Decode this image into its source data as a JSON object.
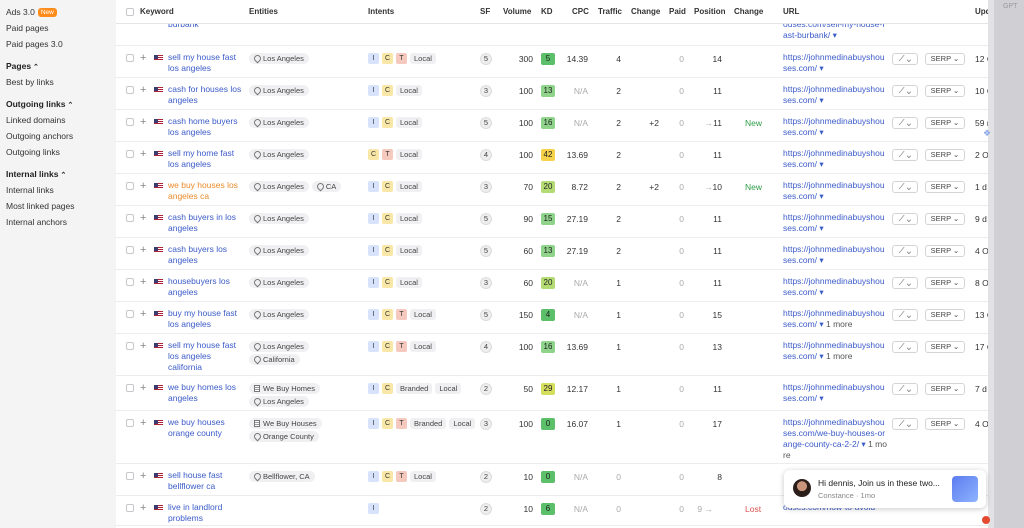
{
  "sidebar": {
    "top_items": [
      {
        "label": "Ads 3.0",
        "badge": "New"
      },
      {
        "label": "Paid pages"
      },
      {
        "label": "Paid pages 3.0"
      }
    ],
    "sections": [
      {
        "title": "Pages",
        "items": [
          "Best by links"
        ]
      },
      {
        "title": "Outgoing links",
        "items": [
          "Linked domains",
          "Outgoing anchors",
          "Outgoing links"
        ]
      },
      {
        "title": "Internal links",
        "items": [
          "Internal links",
          "Most linked pages",
          "Internal anchors"
        ]
      }
    ]
  },
  "table": {
    "headers": {
      "keyword": "Keyword",
      "entities": "Entities",
      "intents": "Intents",
      "sf": "SF",
      "volume": "Volume",
      "kd": "KD",
      "cpc": "CPC",
      "traffic": "Traffic",
      "change": "Change",
      "paid": "Paid",
      "position": "Position",
      "change2": "Change",
      "url": "URL",
      "updated": "Upd"
    },
    "trend_button": "⟋ ⌄",
    "serp_button": "SERP ⌄",
    "partial_top": {
      "keyword": "burbank",
      "url": "ouses.com/sell-my-house-fast-burbank/ ▾"
    },
    "rows": [
      {
        "keyword": "sell my house fast los angeles",
        "entities": [
          "Los Angeles"
        ],
        "intents": [
          "I",
          "C",
          "T"
        ],
        "intent_tags": [
          "Local"
        ],
        "sf": "5",
        "volume": "300",
        "kd": "5",
        "kd_color": "#5cbf6a",
        "cpc": "14.39",
        "traffic": "4",
        "change": "",
        "paid": "0",
        "position": "14",
        "pos_prev": "",
        "change2": "",
        "url": "https://johnmedinabuyshouses.com/ ▾",
        "more": "",
        "updated": "12 C"
      },
      {
        "keyword": "cash for houses los angeles",
        "entities": [
          "Los Angeles"
        ],
        "intents": [
          "I",
          "C"
        ],
        "intent_tags": [
          "Local"
        ],
        "sf": "3",
        "volume": "100",
        "kd": "13",
        "kd_color": "#8fd48a",
        "cpc": "N/A",
        "traffic": "2",
        "change": "",
        "paid": "0",
        "position": "11",
        "pos_prev": "",
        "change2": "",
        "url": "https://johnmedinabuyshouses.com/ ▾",
        "more": "",
        "updated": "10 C"
      },
      {
        "keyword": "cash home buyers los angeles",
        "entities": [
          "Los Angeles"
        ],
        "intents": [
          "I",
          "C"
        ],
        "intent_tags": [
          "Local"
        ],
        "sf": "5",
        "volume": "100",
        "kd": "16",
        "kd_color": "#8fd48a",
        "cpc": "N/A",
        "traffic": "2",
        "change": "+2",
        "paid": "0",
        "position": "11",
        "pos_prev": "→",
        "change2": "New",
        "url": "https://johnmedinabuyshouses.com/ ▾",
        "more": "",
        "updated": "59 r"
      },
      {
        "keyword": "sell my home fast los angeles",
        "entities": [
          "Los Angeles"
        ],
        "intents": [
          "C",
          "T"
        ],
        "intent_tags": [
          "Local"
        ],
        "sf": "4",
        "volume": "100",
        "kd": "42",
        "kd_color": "#f5d24a",
        "cpc": "13.69",
        "traffic": "2",
        "change": "",
        "paid": "0",
        "position": "11",
        "pos_prev": "",
        "change2": "",
        "url": "https://johnmedinabuyshouses.com/ ▾",
        "more": "",
        "updated": "2 Oc"
      },
      {
        "keyword": "we buy houses los angeles ca",
        "orange": true,
        "entities": [
          "Los Angeles",
          "CA"
        ],
        "intents": [
          "I",
          "C"
        ],
        "intent_tags": [
          "Local"
        ],
        "sf": "3",
        "volume": "70",
        "kd": "20",
        "kd_color": "#b5dc74",
        "cpc": "8.72",
        "traffic": "2",
        "change": "+2",
        "paid": "0",
        "position": "10",
        "pos_prev": "→",
        "change2": "New",
        "url": "https://johnmedinabuyshouses.com/ ▾",
        "more": "",
        "updated": "1 d a"
      },
      {
        "keyword": "cash buyers in los angeles",
        "entities": [
          "Los Angeles"
        ],
        "intents": [
          "I",
          "C"
        ],
        "intent_tags": [
          "Local"
        ],
        "sf": "5",
        "volume": "90",
        "kd": "15",
        "kd_color": "#8fd48a",
        "cpc": "27.19",
        "traffic": "2",
        "change": "",
        "paid": "0",
        "position": "11",
        "pos_prev": "",
        "change2": "",
        "url": "https://johnmedinabuyshouses.com/ ▾",
        "more": "",
        "updated": "9 d"
      },
      {
        "keyword": "cash buyers los angeles",
        "entities": [
          "Los Angeles"
        ],
        "intents": [
          "I",
          "C"
        ],
        "intent_tags": [
          "Local"
        ],
        "sf": "5",
        "volume": "60",
        "kd": "13",
        "kd_color": "#8fd48a",
        "cpc": "27.19",
        "traffic": "2",
        "change": "",
        "paid": "0",
        "position": "11",
        "pos_prev": "",
        "change2": "",
        "url": "https://johnmedinabuyshouses.com/ ▾",
        "more": "",
        "updated": "4 Oc"
      },
      {
        "keyword": "housebuyers los angeles",
        "entities": [
          "Los Angeles"
        ],
        "intents": [
          "I",
          "C"
        ],
        "intent_tags": [
          "Local"
        ],
        "sf": "3",
        "volume": "60",
        "kd": "20",
        "kd_color": "#b5dc74",
        "cpc": "N/A",
        "traffic": "1",
        "change": "",
        "paid": "0",
        "position": "11",
        "pos_prev": "",
        "change2": "",
        "url": "https://johnmedinabuyshouses.com/ ▾",
        "more": "",
        "updated": "8 Oc"
      },
      {
        "keyword": "buy my house fast los angeles",
        "entities": [
          "Los Angeles"
        ],
        "intents": [
          "I",
          "C",
          "T"
        ],
        "intent_tags": [
          "Local"
        ],
        "sf": "5",
        "volume": "150",
        "kd": "4",
        "kd_color": "#5cbf6a",
        "cpc": "N/A",
        "traffic": "1",
        "change": "",
        "paid": "0",
        "position": "15",
        "pos_prev": "",
        "change2": "",
        "url": "https://johnmedinabuyshouses.com/ ▾",
        "more": "1 more",
        "updated": "13 C"
      },
      {
        "keyword": "sell my house fast los angeles california",
        "entities": [
          "Los Angeles",
          "California"
        ],
        "intents": [
          "I",
          "C",
          "T"
        ],
        "intent_tags": [
          "Local"
        ],
        "sf": "4",
        "volume": "100",
        "kd": "16",
        "kd_color": "#8fd48a",
        "cpc": "13.69",
        "traffic": "1",
        "change": "",
        "paid": "0",
        "position": "13",
        "pos_prev": "",
        "change2": "",
        "url": "https://johnmedinabuyshouses.com/ ▾",
        "more": "1 more",
        "updated": "17 C"
      },
      {
        "keyword": "we buy homes los angeles",
        "entities": [
          "We Buy Homes",
          "Los Angeles"
        ],
        "entity_building": [
          true,
          false
        ],
        "intents": [
          "I",
          "C"
        ],
        "intent_tags": [
          "Branded",
          "Local"
        ],
        "sf": "2",
        "volume": "50",
        "kd": "29",
        "kd_color": "#d6de5e",
        "cpc": "12.17",
        "traffic": "1",
        "change": "",
        "paid": "0",
        "position": "11",
        "pos_prev": "",
        "change2": "",
        "url": "https://johnmedinabuyshouses.com/ ▾",
        "more": "",
        "updated": "7 d a"
      },
      {
        "keyword": "we buy houses orange county",
        "entities": [
          "We Buy Houses",
          "Orange County"
        ],
        "entity_building": [
          true,
          false
        ],
        "intents": [
          "I",
          "C",
          "T"
        ],
        "intent_tags": [
          "Branded",
          "Local"
        ],
        "sf": "3",
        "volume": "100",
        "kd": "0",
        "kd_color": "#5cbf6a",
        "cpc": "16.07",
        "traffic": "1",
        "change": "",
        "paid": "0",
        "position": "17",
        "pos_prev": "",
        "change2": "",
        "url": "https://johnmedinabuyshouses.com/we-buy-houses-orange-county-ca-2-2/ ▾",
        "more": "1 more",
        "updated": "4 Oc"
      },
      {
        "keyword": "sell house fast bellflower ca",
        "entities": [
          "Bellflower, CA"
        ],
        "intents": [
          "I",
          "C",
          "T"
        ],
        "intent_tags": [
          "Local"
        ],
        "sf": "2",
        "volume": "10",
        "kd": "0",
        "kd_color": "#5cbf6a",
        "cpc": "N/A",
        "traffic": "0",
        "change": "",
        "paid": "0",
        "position": "8",
        "pos_prev": "",
        "change2": "",
        "url": "",
        "more": "",
        "updated": ""
      },
      {
        "keyword": "live in landlord problems",
        "entities": [],
        "intents": [
          "I"
        ],
        "intent_tags": [],
        "sf": "2",
        "volume": "10",
        "kd": "6",
        "kd_color": "#5cbf6a",
        "cpc": "N/A",
        "traffic": "0",
        "change": "",
        "paid": "0",
        "position": "",
        "pos_prev": "9 →",
        "change2": "Lost",
        "url": "ouses.com/how-to-avoid",
        "more": "",
        "updated": ""
      }
    ]
  },
  "right_panel": {
    "label": "GPT"
  },
  "chat": {
    "message": "Hi dennis,  Join us in these two...",
    "sender": "Constance · 1mo"
  }
}
